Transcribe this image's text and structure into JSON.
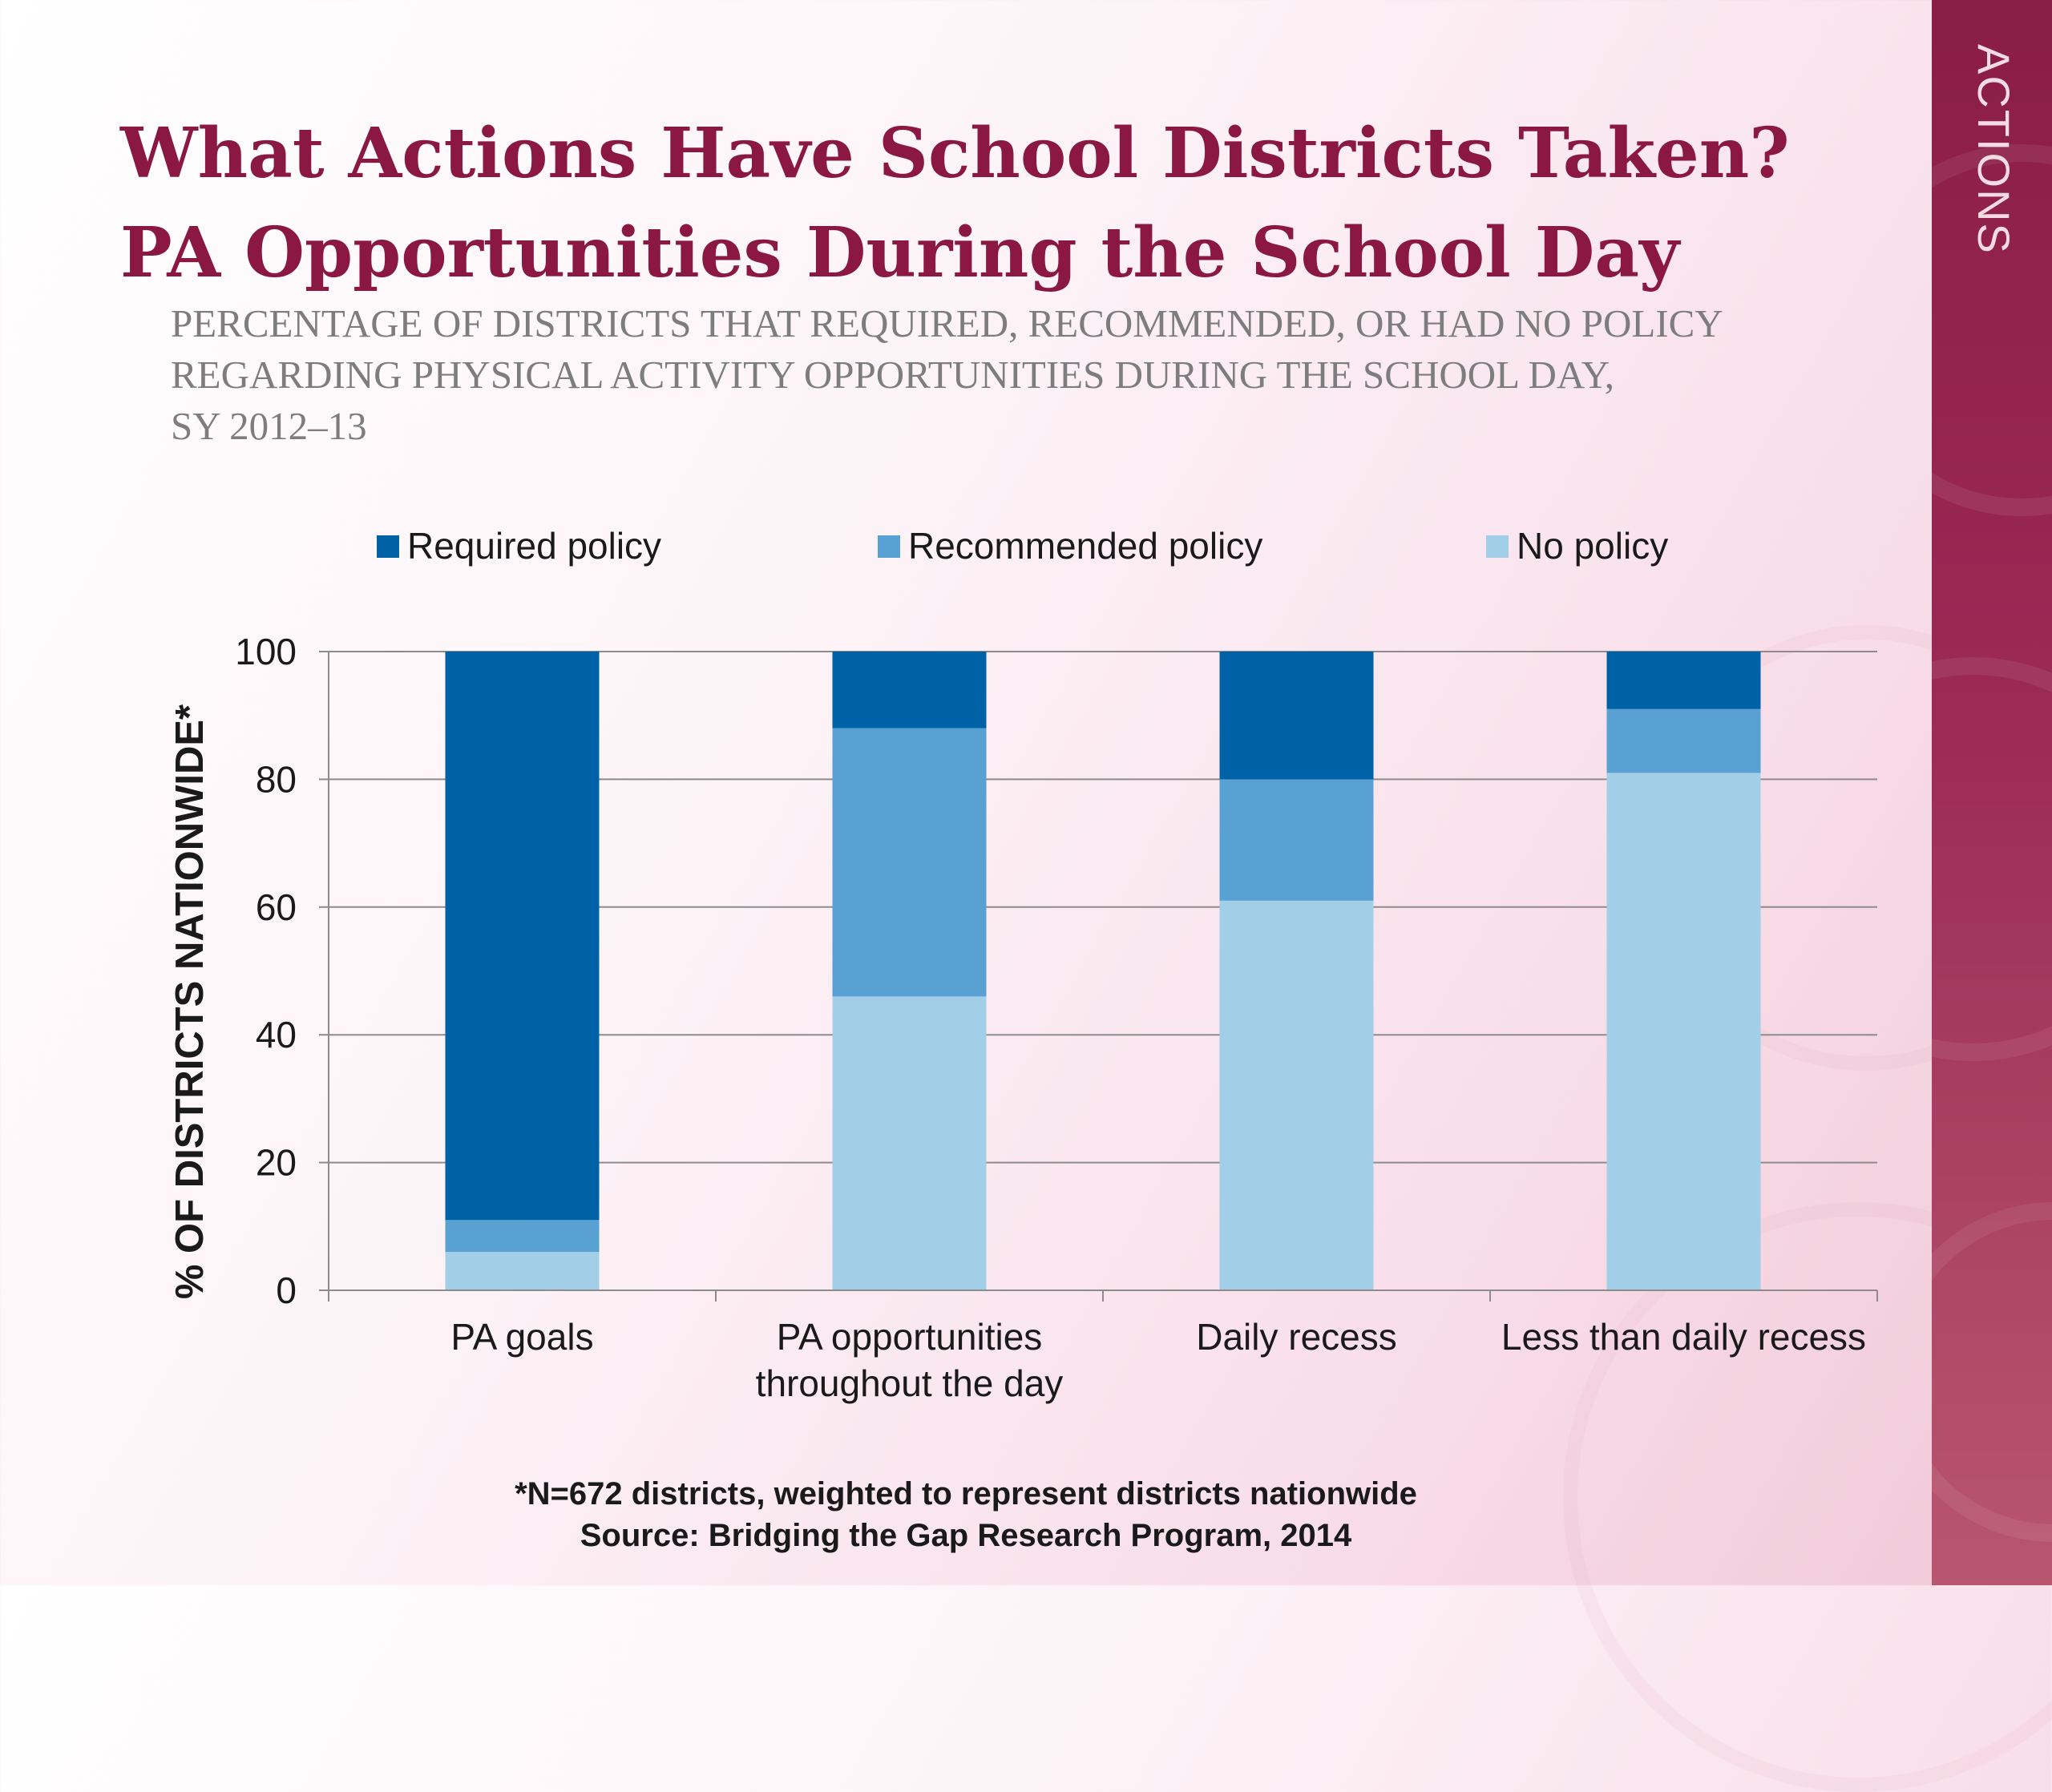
{
  "sidebar": {
    "label": "ACTIONS"
  },
  "title": {
    "line1": "What Actions Have School Districts Taken?",
    "line2": "PA Opportunities During the School Day"
  },
  "subtitle": {
    "line1": "PERCENTAGE OF DISTRICTS THAT REQUIRED, RECOMMENDED, OR HAD NO POLICY",
    "line2": "REGARDING PHYSICAL ACTIVITY OPPORTUNITIES DURING THE SCHOOL DAY,",
    "line3": "SY 2012–13"
  },
  "colors": {
    "title": "#8b1842",
    "sidebar": "#8a1d45",
    "required": "#0062a6",
    "recommended": "#59a0d3",
    "no_policy": "#a3cee8"
  },
  "chart_data": {
    "type": "bar",
    "stacked": true,
    "categories": [
      [
        "PA goals"
      ],
      [
        "PA opportunities",
        "throughout the day"
      ],
      [
        "Daily recess"
      ],
      [
        "Less than daily recess"
      ]
    ],
    "series": [
      {
        "name": "Required policy",
        "color": "#0062a6",
        "values": [
          89,
          12,
          20,
          9
        ]
      },
      {
        "name": "Recommended policy",
        "color": "#59a0d3",
        "values": [
          5,
          42,
          19,
          10
        ]
      },
      {
        "name": "No policy",
        "color": "#a3cee8",
        "values": [
          6,
          46,
          61,
          81
        ]
      }
    ],
    "stack_order_bottom_to_top": [
      "No policy",
      "Recommended policy",
      "Required policy"
    ],
    "ylabel": "% OF DISTRICTS NATIONWIDE*",
    "xlabel": "",
    "ylim": [
      0,
      100
    ],
    "yticks": [
      0,
      20,
      40,
      60,
      80,
      100
    ],
    "grid": true,
    "legend_position": "top"
  },
  "footnote": {
    "line1": "*N=672 districts, weighted to represent districts nationwide",
    "line2": "Source: Bridging the Gap Research Program, 2014"
  }
}
